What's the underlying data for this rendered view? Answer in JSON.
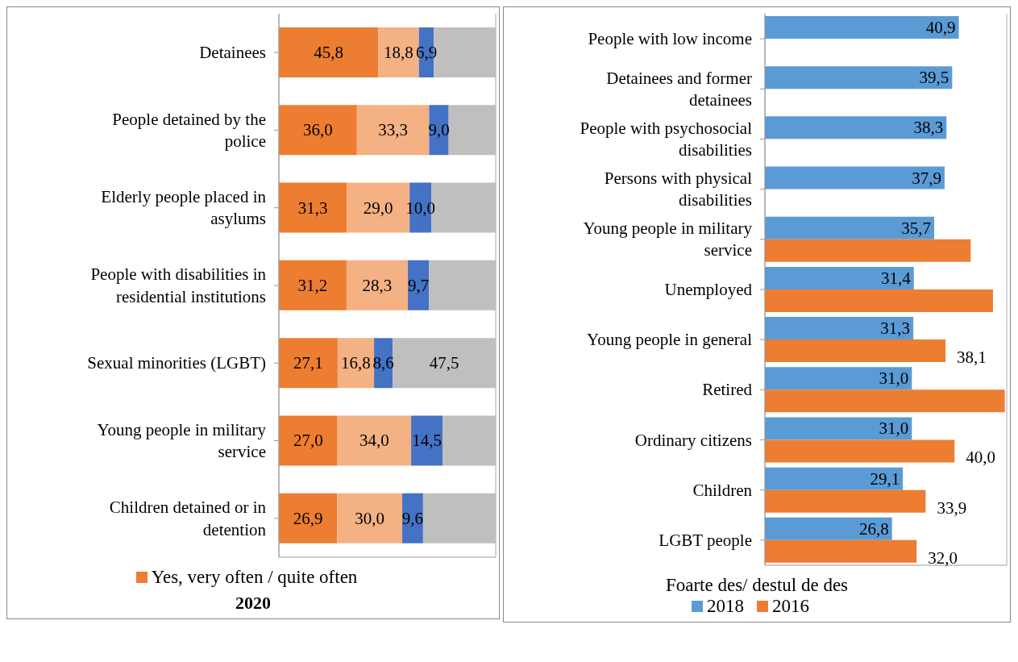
{
  "chart_data": [
    {
      "type": "bar",
      "orientation": "horizontal",
      "stacked": true,
      "title": "2020",
      "categories": [
        "Detainees",
        "People detained by the police",
        "Elderly people placed in asylums",
        "People with disabilities in residential institutions",
        "Sexual minorities (LGBT)",
        "Young people in military service",
        "Children detained or in detention"
      ],
      "series": [
        {
          "name": "Yes, very often / quite often",
          "color": "#ed7d31",
          "values": [
            45.8,
            36.0,
            31.3,
            31.2,
            27.1,
            27.0,
            26.9
          ],
          "value_labels": [
            "45,8",
            "36,0",
            "31,3",
            "31,2",
            "27,1",
            "27,0",
            "26,9"
          ]
        },
        {
          "color": "#f4b183",
          "values": [
            18.8,
            33.3,
            29.0,
            28.3,
            16.8,
            34.0,
            30.0
          ],
          "value_labels": [
            "18,8",
            "33,3",
            "29,0",
            "28,3",
            "16,8",
            "34,0",
            "30,0"
          ]
        },
        {
          "color": "#4472c4",
          "values": [
            6.9,
            9.0,
            10.0,
            9.7,
            8.6,
            14.5,
            9.6
          ],
          "value_labels": [
            "6,9",
            "9,0",
            "10,0",
            "9,7",
            "8,6",
            "14,5",
            "9,6"
          ]
        },
        {
          "color": "#bfbfbf",
          "values": [
            28.5,
            21.7,
            29.7,
            30.8,
            47.5,
            24.5,
            33.5
          ],
          "value_labels": [
            null,
            null,
            null,
            null,
            "47,5",
            null,
            null
          ]
        }
      ],
      "xlim": [
        0,
        100
      ],
      "grid": "x",
      "legend": "bottom",
      "tick_labels": "y"
    },
    {
      "type": "bar",
      "orientation": "horizontal",
      "legend_title": "Foarte des/ destul de des",
      "categories": [
        "People with low income",
        "Detainees and former detainees",
        "People with psychosocial disabilities",
        "Persons with physical disabilities",
        "Young people in military service",
        "Unemployed",
        "Young people in general",
        "Retired",
        "Ordinary citizens",
        "Children",
        "LGBT people"
      ],
      "series": [
        {
          "name": "2018",
          "color": "#5b9bd5",
          "values": [
            40.9,
            39.5,
            38.3,
            37.9,
            35.7,
            31.4,
            31.3,
            31.0,
            31.0,
            29.1,
            26.8
          ],
          "value_labels": [
            "40,9",
            "39,5",
            "38,3",
            "37,9",
            "35,7",
            "31,4",
            "31,3",
            "31,0",
            "31,0",
            "29,1",
            "26,8"
          ]
        },
        {
          "name": "2016",
          "color": "#ed7d31",
          "values": [
            null,
            null,
            null,
            null,
            43.4,
            48.1,
            38.1,
            50.6,
            40.0,
            33.9,
            32.0
          ],
          "value_labels": [
            null,
            null,
            null,
            null,
            null,
            null,
            "38,1",
            null,
            "40,0",
            "33,9",
            "32,0"
          ]
        }
      ],
      "xlim": [
        0,
        51
      ],
      "grid": "x",
      "legend": "bottom",
      "tick_labels": "y"
    }
  ]
}
